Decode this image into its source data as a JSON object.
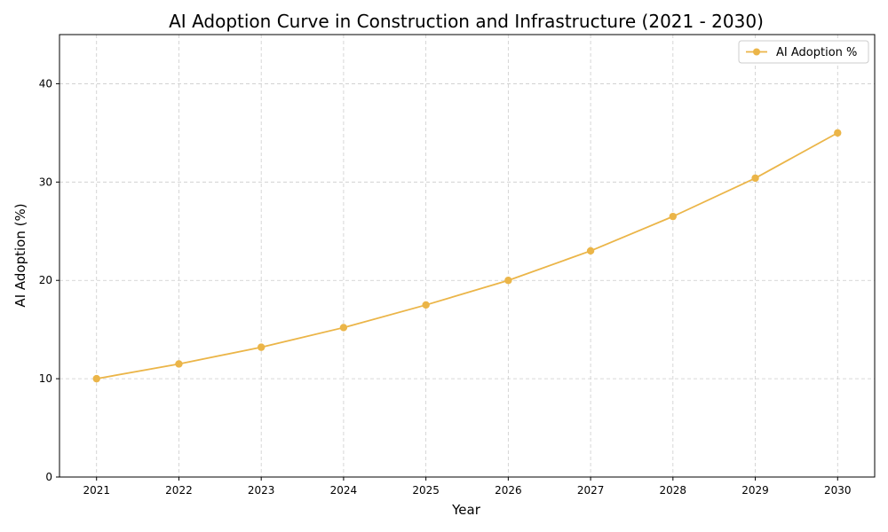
{
  "chart_data": {
    "type": "line",
    "title": "AI Adoption Curve in Construction and Infrastructure (2021 - 2030)",
    "xlabel": "Year",
    "ylabel": "AI Adoption (%)",
    "x": [
      2021,
      2022,
      2023,
      2024,
      2025,
      2026,
      2027,
      2028,
      2029,
      2030
    ],
    "xticks": [
      "2021",
      "2022",
      "2023",
      "2024",
      "2025",
      "2026",
      "2027",
      "2028",
      "2029",
      "2030"
    ],
    "yticks": [
      "0",
      "10",
      "20",
      "30",
      "40"
    ],
    "ylim": [
      0,
      45
    ],
    "grid": true,
    "legend_position": "top-right",
    "series": [
      {
        "name": "AI Adoption %",
        "color": "#EBB548",
        "marker": "circle",
        "values": [
          10.0,
          11.5,
          13.2,
          15.2,
          17.5,
          20.0,
          23.0,
          26.5,
          30.4,
          35.0
        ]
      }
    ]
  }
}
